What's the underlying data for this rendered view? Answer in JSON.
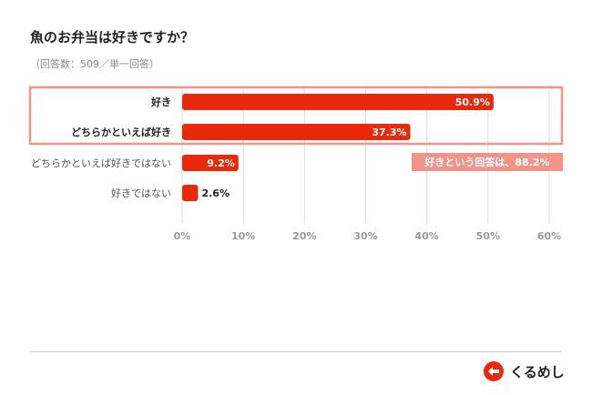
{
  "title": "魚のお弁当は好きですか？",
  "subtitle": "（回答数：509／単一回答）",
  "brand": {
    "name": "くるめし",
    "color": "#e8290b"
  },
  "colors": {
    "bar": "#e8290b",
    "highlight_box": "#f2948a",
    "callout_bg": "#f2948a",
    "grid": "#dddddd",
    "tick": "#999999"
  },
  "callout": {
    "text": "好きという回答は、88.2%"
  },
  "chart_data": {
    "type": "bar",
    "orientation": "horizontal",
    "categories": [
      "好き",
      "どちらかといえば好き",
      "どちらかといえば好きではない",
      "好きではない"
    ],
    "values": [
      50.9,
      37.3,
      9.2,
      2.6
    ],
    "value_labels": [
      "50.9%",
      "37.3%",
      "9.2%",
      "2.6%"
    ],
    "xlim": [
      0,
      60
    ],
    "xticks": [
      "0%",
      "10%",
      "20%",
      "30%",
      "40%",
      "50%",
      "60%"
    ],
    "highlighted_categories": [
      0,
      1
    ],
    "grid": true
  }
}
